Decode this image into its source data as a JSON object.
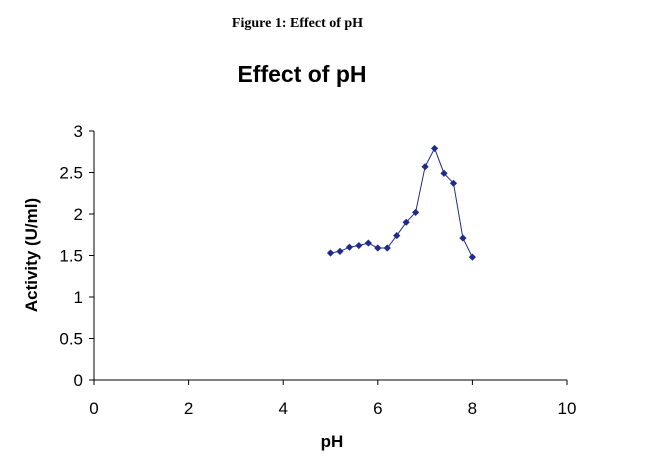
{
  "figure_caption": "Figure 1: Effect of pH",
  "chart_data": {
    "type": "scatter",
    "title": "Effect of pH",
    "xlabel": "pH",
    "ylabel": "Activity (U/ml)",
    "xlim": [
      0,
      10
    ],
    "ylim": [
      0,
      3
    ],
    "x_ticks": [
      "0",
      "2",
      "4",
      "6",
      "8",
      "10"
    ],
    "y_ticks": [
      "0",
      "0.5",
      "1",
      "1.5",
      "2",
      "2.5",
      "3"
    ],
    "grid": false,
    "legend": "none",
    "series": [
      {
        "name": "Activity",
        "color": "#1f2b8a",
        "marker": "diamond",
        "line": "straight",
        "x": [
          5.0,
          5.2,
          5.4,
          5.6,
          5.8,
          6.0,
          6.2,
          6.4,
          6.6,
          6.8,
          7.0,
          7.2,
          7.4,
          7.6,
          7.8,
          8.0
        ],
        "y": [
          1.53,
          1.55,
          1.6,
          1.62,
          1.65,
          1.59,
          1.59,
          1.74,
          1.9,
          2.02,
          2.57,
          2.79,
          2.49,
          2.37,
          1.71,
          1.48
        ]
      }
    ]
  }
}
